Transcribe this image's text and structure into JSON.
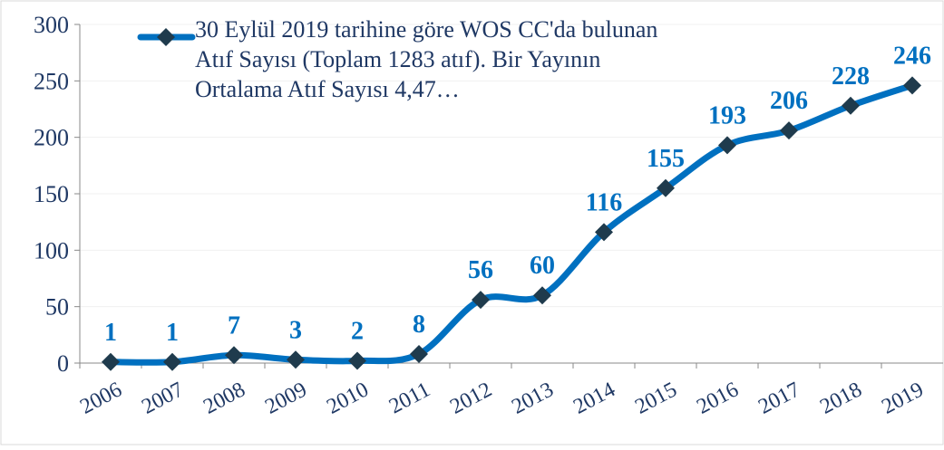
{
  "chart_data": {
    "type": "line",
    "categories": [
      "2006",
      "2007",
      "2008",
      "2009",
      "2010",
      "2011",
      "2012",
      "2013",
      "2014",
      "2015",
      "2016",
      "2017",
      "2018",
      "2019"
    ],
    "series": [
      {
        "name": "30 Eylül 2019 tarihine göre WOS CC'da bulunan Atıf Sayısı (Toplam 1283 atıf). Bir Yayının Ortalama Atıf Sayısı 4,47…",
        "color": "#0070c0",
        "marker_color": "#1f3b4d",
        "values": [
          1,
          1,
          7,
          3,
          2,
          8,
          56,
          60,
          116,
          155,
          193,
          206,
          228,
          246
        ]
      }
    ],
    "ylim": [
      0,
      300
    ],
    "yticks": [
      0,
      50,
      100,
      150,
      200,
      250,
      300
    ],
    "grid": true,
    "smooth": true,
    "legend": "top"
  }
}
